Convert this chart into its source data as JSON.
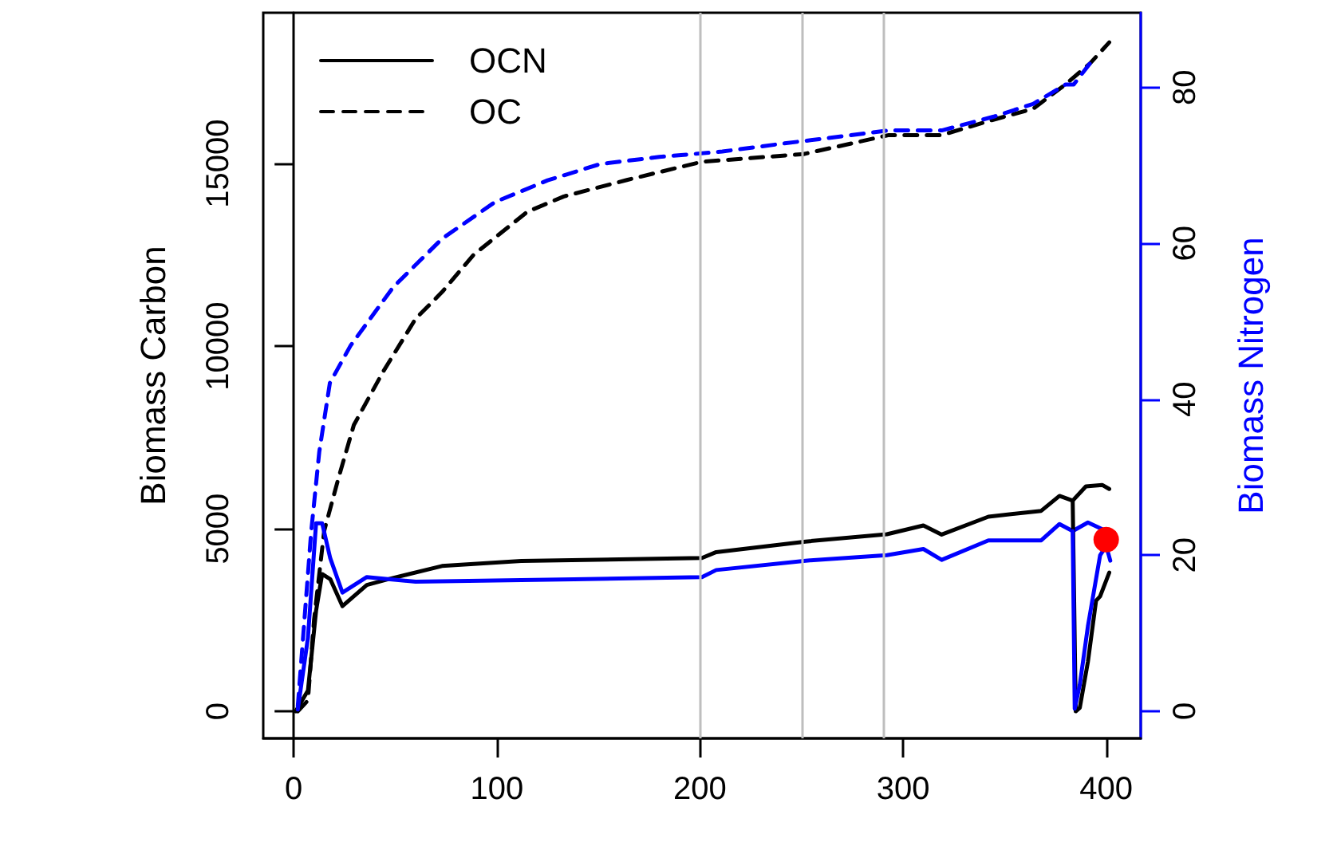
{
  "chart_data": {
    "type": "line",
    "xlabel": null,
    "ylabel": "Biomass Carbon",
    "y2label": "Biomass Nitrogen",
    "xlim": [
      -15,
      417
    ],
    "xticks": [
      0,
      100,
      200,
      300,
      400
    ],
    "ylim": [
      -740,
      19130
    ],
    "yticks": [
      0,
      5000,
      10000,
      15000
    ],
    "y2lim": [
      -3.5,
      89.6
    ],
    "y2ticks": [
      0,
      20,
      40,
      60,
      80
    ],
    "grid": false,
    "legend": "top left",
    "marker": "none",
    "ref_lines": [
      {
        "axis": "x",
        "value": 200,
        "color": "#bebebe"
      },
      {
        "axis": "x",
        "value": 250,
        "color": "#bebebe"
      },
      {
        "axis": "x",
        "value": 290,
        "color": "#bebebe"
      }
    ],
    "series": [
      {
        "name": "OCN",
        "color": "#000000",
        "line_style": "solid",
        "x": [
          1,
          7,
          11,
          14,
          18,
          24,
          36,
          46.5,
          73,
          112,
          201,
          208,
          252,
          292,
          310,
          319,
          342,
          368,
          377,
          383.5,
          390,
          398,
          401.5
        ],
        "values": [
          0,
          570,
          2750,
          3760,
          3620,
          2880,
          3460,
          3620,
          3980,
          4120,
          4200,
          4360,
          4650,
          4850,
          5090,
          4840,
          5330,
          5490,
          5900,
          5770,
          6160,
          6200,
          6090
        ]
      },
      {
        "name": "OC",
        "color": "#000000",
        "line_style": "dashed",
        "x": [
          2,
          7,
          10,
          15,
          22,
          29.6,
          44,
          60,
          73,
          88.5,
          115,
          133,
          164,
          201,
          251,
          293,
          319,
          345,
          364,
          380,
          392,
          401.5
        ],
        "values": [
          0,
          300,
          2500,
          4940,
          6380,
          7840,
          9300,
          10750,
          11480,
          12500,
          13680,
          14100,
          14550,
          15050,
          15260,
          15780,
          15780,
          16210,
          16500,
          17170,
          17740,
          18320
        ]
      },
      {
        "color": "#0000ff",
        "axis": "y2",
        "line_style": "solid",
        "x": [
          2,
          7,
          11,
          14,
          18,
          24,
          36,
          60,
          138,
          201,
          208,
          252,
          292,
          310,
          319,
          342,
          368,
          377,
          383.5,
          391,
          400,
          401
        ],
        "values": [
          0.2,
          9.4,
          24.1,
          24.1,
          19.6,
          15.2,
          17.2,
          16.6,
          16.9,
          17.2,
          18.1,
          19.3,
          20.0,
          20.8,
          19.4,
          21.9,
          21.9,
          24.0,
          23.1,
          24.2,
          23.1,
          22.7
        ]
      },
      {
        "color": "#0000ff",
        "axis": "y2",
        "line_style": "dashed",
        "x": [
          2,
          8.6,
          12.6,
          17.8,
          28,
          49,
          73,
          99,
          125,
          151,
          180,
          211,
          240.5,
          293,
          319,
          345,
          364,
          380,
          384,
          392
        ],
        "values": [
          0.6,
          23,
          33.3,
          42.1,
          46.9,
          54.4,
          60.6,
          65.3,
          68.1,
          70.2,
          71.1,
          71.8,
          72.8,
          74.5,
          74.5,
          76.3,
          77.9,
          80.4,
          80.4,
          83.1
        ]
      },
      {
        "color": "#000000",
        "line_style": "solid",
        "x": [
          383.5,
          385,
          387,
          391,
          395,
          397,
          401.5
        ],
        "values": [
          5770,
          0,
          100,
          1360,
          3030,
          3150,
          3800
        ]
      },
      {
        "color": "#0000ff",
        "axis": "y2",
        "line_style": "solid",
        "x": [
          383.5,
          384.5,
          387,
          391,
          397,
          400,
          402
        ],
        "values": [
          23.1,
          0.3,
          3.4,
          10.9,
          20.0,
          21.2,
          19.3
        ]
      },
      {
        "type": "scatter",
        "color": "#ff0000",
        "marker": "circle",
        "x": [
          400
        ],
        "values": [
          4700
        ]
      }
    ]
  }
}
